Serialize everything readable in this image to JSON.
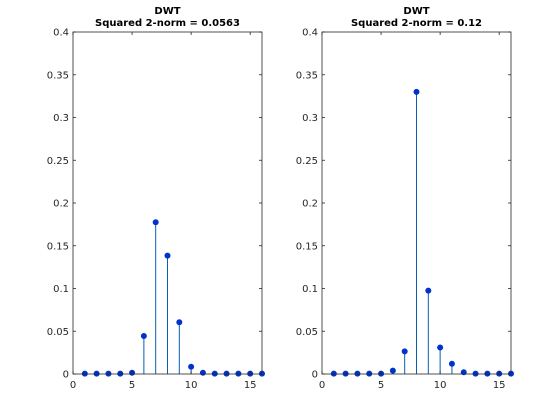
{
  "chart_data": [
    {
      "type": "stem",
      "title": "DWT",
      "subtitle": "Squared 2-norm = 0.0563",
      "x": [
        1,
        2,
        3,
        4,
        5,
        6,
        7,
        8,
        9,
        10,
        11,
        12,
        13,
        14,
        15,
        16
      ],
      "values": [
        0.0005,
        0.0005,
        0.0005,
        0.0005,
        0.0015,
        0.0445,
        0.1775,
        0.1385,
        0.0605,
        0.0085,
        0.0015,
        0.0005,
        0.0005,
        0.0005,
        0.0005,
        0.0005
      ],
      "xlim": [
        0,
        16
      ],
      "ylim": [
        0,
        0.4
      ],
      "xticks": [
        0,
        5,
        10,
        15
      ],
      "yticks": [
        0,
        0.05,
        0.1,
        0.15,
        0.2,
        0.25,
        0.3,
        0.35,
        0.4
      ],
      "xtick_labels": [
        "0",
        "5",
        "10",
        "15"
      ],
      "ytick_labels": [
        "0",
        "0.05",
        "0.1",
        "0.15",
        "0.2",
        "0.25",
        "0.3",
        "0.35",
        "0.4"
      ],
      "color": "#0b5fb3",
      "marker_color": "#0033cc"
    },
    {
      "type": "stem",
      "title": "DWT",
      "subtitle": "Squared 2-norm = 0.12",
      "x": [
        1,
        2,
        3,
        4,
        5,
        6,
        7,
        8,
        9,
        10,
        11,
        12,
        13,
        14,
        15,
        16
      ],
      "values": [
        0.0005,
        0.0005,
        0.0005,
        0.0005,
        0.0005,
        0.004,
        0.0265,
        0.33,
        0.0975,
        0.031,
        0.012,
        0.002,
        0.0005,
        0.0005,
        0.0005,
        0.0005
      ],
      "xlim": [
        0,
        16
      ],
      "ylim": [
        0,
        0.4
      ],
      "xticks": [
        0,
        5,
        10,
        15
      ],
      "yticks": [
        0,
        0.05,
        0.1,
        0.15,
        0.2,
        0.25,
        0.3,
        0.35,
        0.4
      ],
      "xtick_labels": [
        "0",
        "5",
        "10",
        "15"
      ],
      "ytick_labels": [
        "0",
        "0.05",
        "0.1",
        "0.15",
        "0.2",
        "0.25",
        "0.3",
        "0.35",
        "0.4"
      ],
      "color": "#0b5fb3",
      "marker_color": "#0033cc"
    }
  ]
}
